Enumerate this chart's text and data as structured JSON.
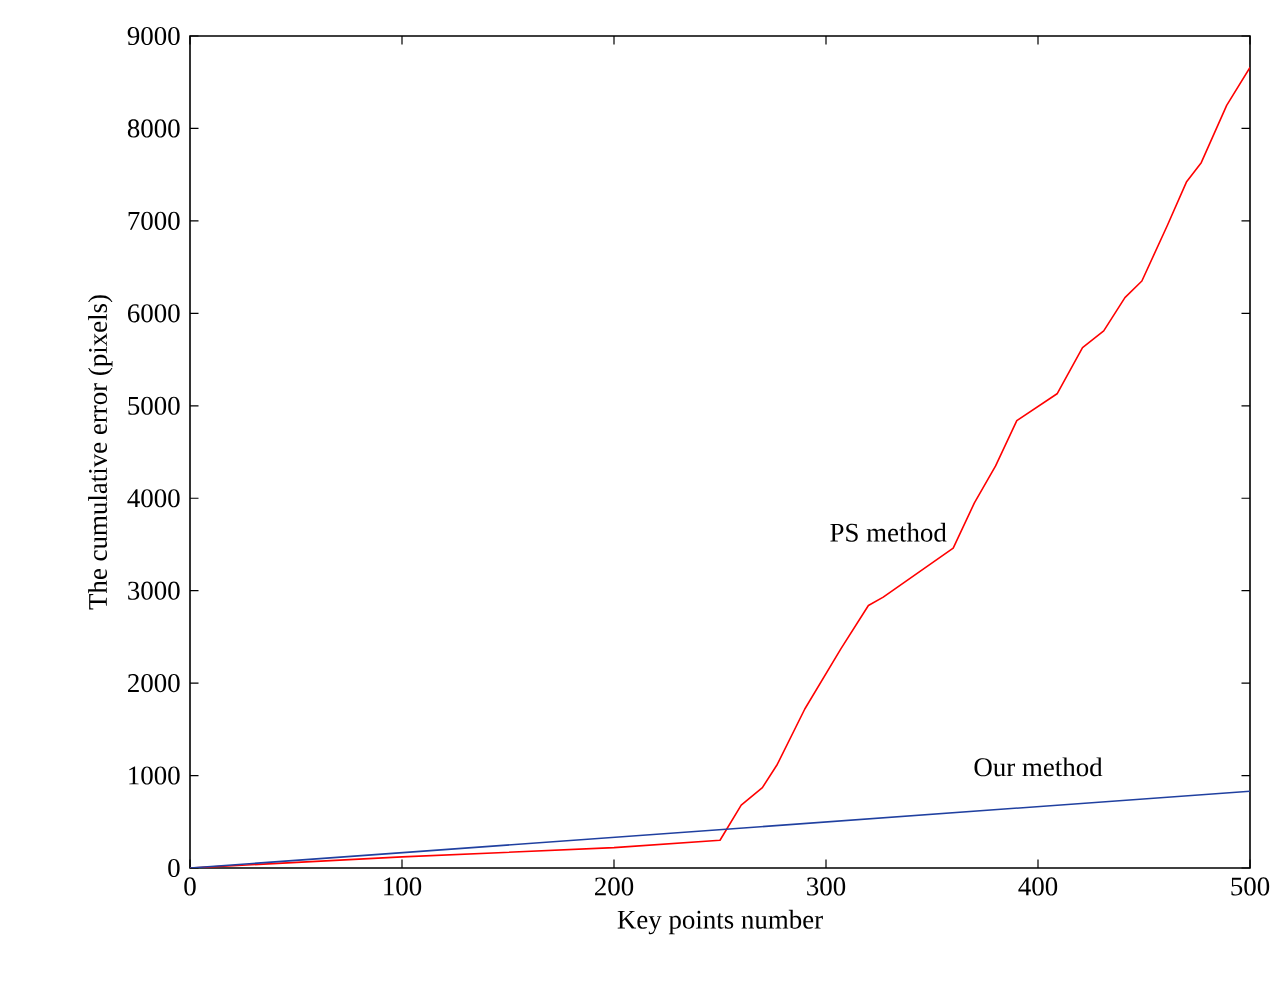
{
  "chart_data": {
    "type": "line",
    "xlabel": "Key points number",
    "ylabel": "The cumulative error (pixels)",
    "xlim": [
      0,
      500
    ],
    "ylim": [
      0,
      9000
    ],
    "xticks": [
      0,
      100,
      200,
      300,
      400,
      500
    ],
    "yticks": [
      0,
      1000,
      2000,
      3000,
      4000,
      5000,
      6000,
      7000,
      8000,
      9000
    ],
    "grid": false,
    "legend": false,
    "marker": "none",
    "line_style": "solid",
    "series": [
      {
        "name": "PS method",
        "color": "#ff0000",
        "x": [
          0,
          100,
          200,
          250,
          260,
          270,
          277,
          290,
          307,
          320,
          327,
          360,
          370,
          380,
          390,
          409,
          421,
          431,
          441,
          449,
          461,
          470,
          477,
          489,
          500
        ],
        "values": [
          0,
          120,
          220,
          300,
          680,
          870,
          1120,
          1720,
          2370,
          2840,
          2930,
          3460,
          3950,
          4350,
          4840,
          5130,
          5630,
          5810,
          6170,
          6350,
          6950,
          7420,
          7630,
          8250,
          8660
        ]
      },
      {
        "name": "Our method",
        "color": "#2040a0",
        "x": [
          0,
          500
        ],
        "values": [
          0,
          830
        ]
      }
    ]
  }
}
